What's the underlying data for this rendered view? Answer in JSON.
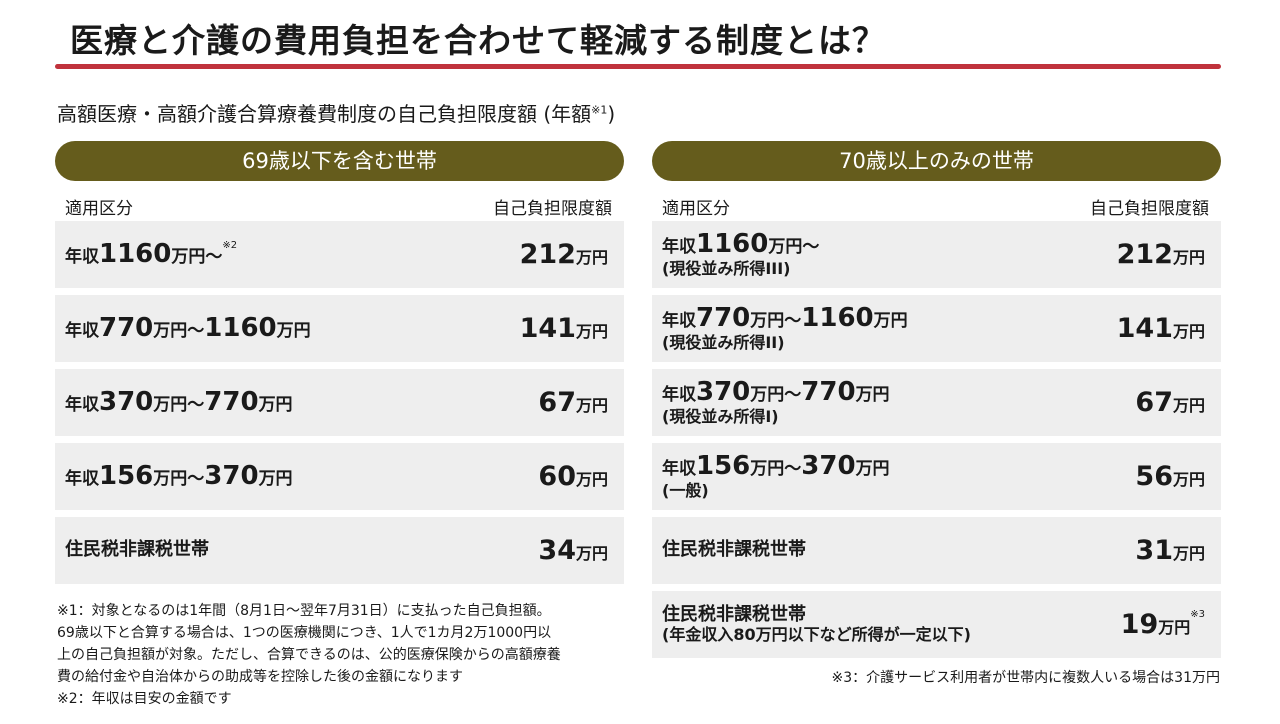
{
  "title": "医療と介護の費用負担を合わせて軽減する制度とは？",
  "subtitle": "高額医療・高額介護合算療養費制度の自己負担限度額 (年額",
  "subtitle_note": "※1",
  "subtitle_close": ")",
  "left": {
    "header": "69歳以下を含む世帯",
    "col1": "適用区分",
    "col2": "自己負担限度額",
    "rows": [
      {
        "label": [
          {
            "t": "年収"
          },
          {
            "t": "1160",
            "big": 1
          },
          {
            "t": "万円～"
          }
        ],
        "note": "※2",
        "sub": "",
        "amount": "212",
        "unit": "万円"
      },
      {
        "label": [
          {
            "t": "年収"
          },
          {
            "t": "770",
            "big": 1
          },
          {
            "t": "万円～"
          },
          {
            "t": "1160",
            "big": 1
          },
          {
            "t": "万円"
          }
        ],
        "sub": "",
        "amount": "141",
        "unit": "万円"
      },
      {
        "label": [
          {
            "t": "年収"
          },
          {
            "t": "370",
            "big": 1
          },
          {
            "t": "万円～"
          },
          {
            "t": "770",
            "big": 1
          },
          {
            "t": "万円"
          }
        ],
        "sub": "",
        "amount": "67",
        "unit": "万円"
      },
      {
        "label": [
          {
            "t": "年収"
          },
          {
            "t": "156",
            "big": 1
          },
          {
            "t": "万円～"
          },
          {
            "t": "370",
            "big": 1
          },
          {
            "t": "万円"
          }
        ],
        "sub": "",
        "amount": "60",
        "unit": "万円"
      },
      {
        "label": [
          {
            "t": "住民税非課税世帯",
            "mid": 1
          }
        ],
        "sub": "",
        "amount": "34",
        "unit": "万円"
      }
    ]
  },
  "right": {
    "header": "70歳以上のみの世帯",
    "col1": "適用区分",
    "col2": "自己負担限度額",
    "rows": [
      {
        "label": [
          {
            "t": "年収"
          },
          {
            "t": "1160",
            "big": 1
          },
          {
            "t": "万円～"
          }
        ],
        "sub": "(現役並み所得III)",
        "amount": "212",
        "unit": "万円"
      },
      {
        "label": [
          {
            "t": "年収"
          },
          {
            "t": "770",
            "big": 1
          },
          {
            "t": "万円～"
          },
          {
            "t": "1160",
            "big": 1
          },
          {
            "t": "万円"
          }
        ],
        "sub": "(現役並み所得II)",
        "amount": "141",
        "unit": "万円"
      },
      {
        "label": [
          {
            "t": "年収"
          },
          {
            "t": "370",
            "big": 1
          },
          {
            "t": "万円～"
          },
          {
            "t": "770",
            "big": 1
          },
          {
            "t": "万円"
          }
        ],
        "sub": "(現役並み所得I)",
        "amount": "67",
        "unit": "万円"
      },
      {
        "label": [
          {
            "t": "年収"
          },
          {
            "t": "156",
            "big": 1
          },
          {
            "t": "万円～"
          },
          {
            "t": "370",
            "big": 1
          },
          {
            "t": "万円"
          }
        ],
        "sub": "(一般)",
        "amount": "56",
        "unit": "万円"
      },
      {
        "label": [
          {
            "t": "住民税非課税世帯",
            "mid": 1
          }
        ],
        "sub": "",
        "amount": "31",
        "unit": "万円"
      },
      {
        "label": [
          {
            "t": "住民税非課税世帯",
            "mid": 1
          }
        ],
        "sub": "(年金収入80万円以下など所得が一定以下)",
        "amount": "19",
        "unit": "万円",
        "anote": "※3"
      }
    ]
  },
  "notes": [
    "※1：対象となるのは1年間（8月1日～翌年7月31日）に支払った自己負担額。",
    "69歳以下と合算する場合は、1つの医療機関につき、1人で1カ月2万1000円以",
    "上の自己負担額が対象。ただし、合算できるのは、公的医療保険からの高額療養",
    "費の給付金や自治体からの助成等を控除した後の金額になります",
    "※2：年収は目安の金額です"
  ],
  "note3": "※3：介護サービス利用者が世帯内に複数人いる場合は31万円",
  "colors": {
    "accent": "#c0323c",
    "pill": "#655c1c",
    "row": "#eeeeee"
  }
}
